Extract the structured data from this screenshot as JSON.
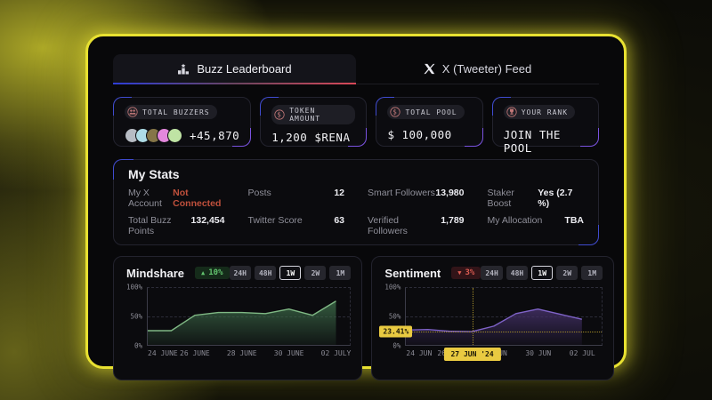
{
  "tabs": {
    "leaderboard_label": "Buzz Leaderboard",
    "feed_label": "X (Tweeter) Feed"
  },
  "stat_cards": [
    {
      "label": "TOTAL BUZZERS",
      "value": "+45,870",
      "icon": "users-icon",
      "avatar_colors": [
        "#b7bcc4",
        "#aedce6",
        "#857548",
        "#e388dc",
        "#bfe3a4"
      ]
    },
    {
      "label": "TOKEN AMOUNT",
      "value": "1,200 $RENA",
      "icon": "token-icon"
    },
    {
      "label": "TOTAL POOL",
      "value": "$ 100,000",
      "icon": "dollar-icon"
    },
    {
      "label": "YOUR RANK",
      "value": "JOIN THE POOL",
      "icon": "trophy-icon"
    }
  ],
  "my_stats": {
    "title": "My Stats",
    "items": [
      {
        "label": "My X Account",
        "value": "Not Connected",
        "value_color": "#c0503c"
      },
      {
        "label": "Posts",
        "value": "12"
      },
      {
        "label": "Smart Followers",
        "value": "13,980"
      },
      {
        "label": "Staker Boost",
        "value": "Yes (2.7 %)"
      },
      {
        "label": "Total Buzz Points",
        "value": "132,454"
      },
      {
        "label": "Twitter Score",
        "value": "63"
      },
      {
        "label": "Verified Followers",
        "value": "1,789"
      },
      {
        "label": "My Allocation",
        "value": "TBA"
      }
    ]
  },
  "colors": {
    "accent_yellow": "#e8e131",
    "tab_underline_left": "#2e3ed8",
    "tab_underline_right": "#d84858",
    "positive_green": "#63c56f",
    "negative_red": "#dd5c52",
    "crosshair_yellow": "#e9ca41"
  },
  "chart_data": [
    {
      "type": "area",
      "title": "Mindshare",
      "badge": {
        "direction": "up",
        "arrow": "▲",
        "label": "10%"
      },
      "ranges": [
        "24H",
        "48H",
        "1W",
        "2W",
        "1M"
      ],
      "selected_range": "1W",
      "x": [
        "24 JUN",
        "25 JUN",
        "26 JUN",
        "27 JUN",
        "28 JUN",
        "29 JUN",
        "30 JUN",
        "01 JUL",
        "02 JUL"
      ],
      "values": [
        25,
        25,
        52,
        57,
        57,
        55,
        63,
        52,
        77
      ],
      "tick_labels": [
        "24 JUNE",
        "26 JUNE",
        "28 JUNE",
        "30 JUNE",
        "02 JULY"
      ],
      "y_tick_labels": [
        "100%",
        "50%",
        "0%"
      ],
      "ylim": [
        0,
        100
      ],
      "series_extent": 0.93,
      "line_color": "#7fb884",
      "fill_color": "#3b6847",
      "grid": "dashed",
      "legend": "none"
    },
    {
      "type": "area",
      "title": "Sentiment",
      "badge": {
        "direction": "down",
        "arrow": "▼",
        "label": "3%"
      },
      "ranges": [
        "24H",
        "48H",
        "1W",
        "2W",
        "1M"
      ],
      "selected_range": "1W",
      "x": [
        "24 JUN",
        "25 JUN",
        "26 JUN",
        "27 JUN",
        "28 JUN",
        "29 JUN",
        "30 JUN",
        "01 JUL",
        "02 JUL"
      ],
      "values": [
        26,
        27,
        24,
        23.41,
        33,
        55,
        63,
        54,
        45
      ],
      "tick_labels": [
        "24 JUN",
        "26 JUN",
        "28 JUN",
        "30 JUN",
        "02 JUL"
      ],
      "y_tick_labels": [
        "100%",
        "50%",
        "0%"
      ],
      "ylim": [
        0,
        100
      ],
      "series_extent": 0.9,
      "line_color": "#7f63c8",
      "fill_color": "#433066",
      "grid": "dashed",
      "legend": "none",
      "crosshair": {
        "x_index": 3,
        "value": 23.41,
        "value_label": "23.41%",
        "date_label": "27 JUN '24"
      }
    }
  ]
}
